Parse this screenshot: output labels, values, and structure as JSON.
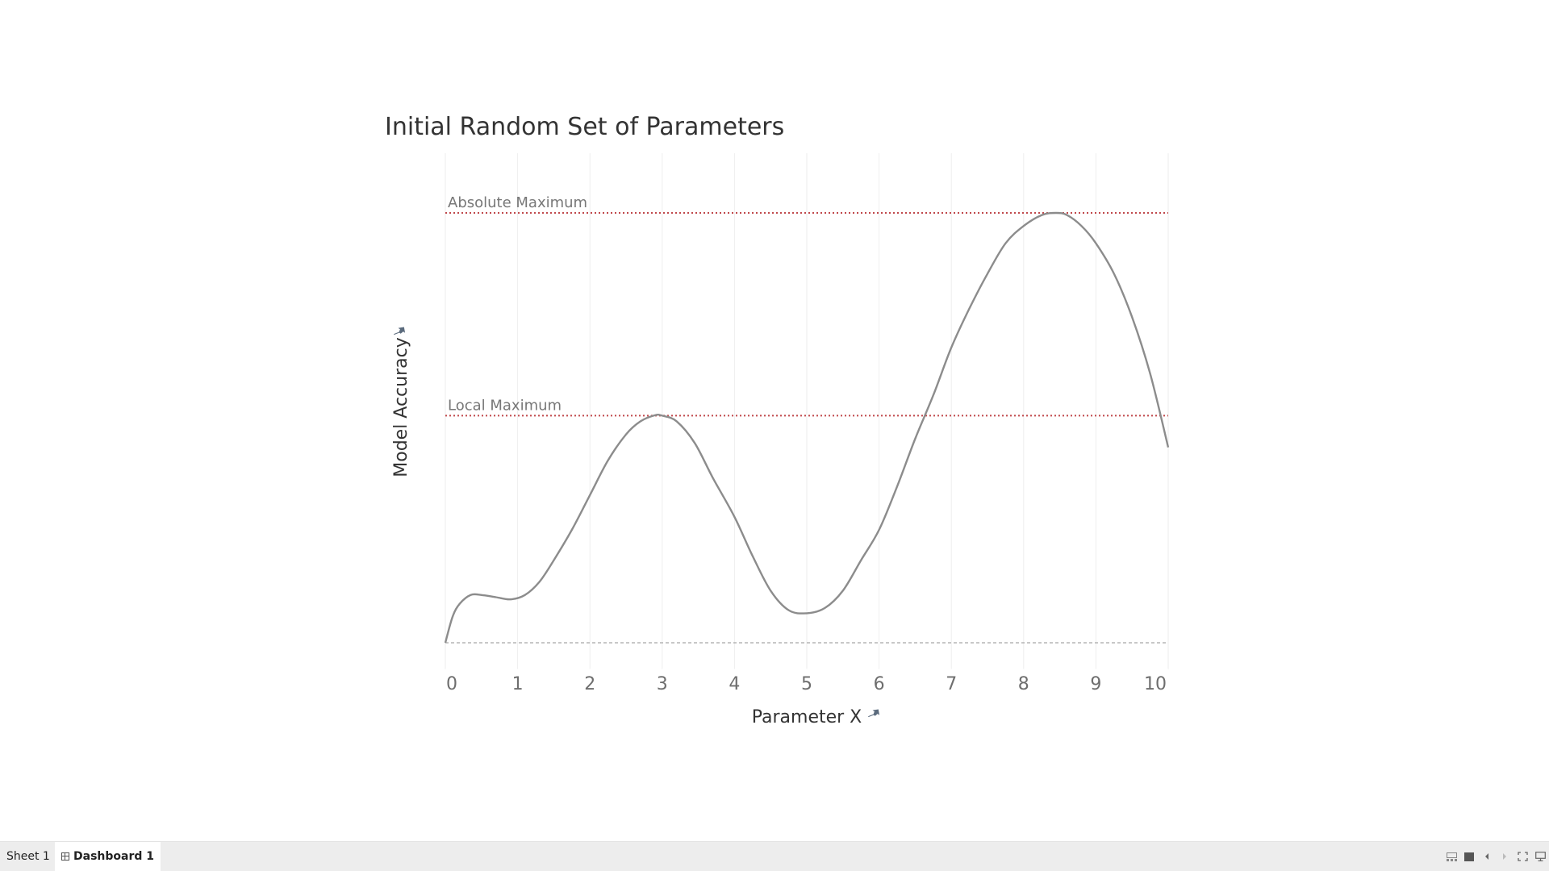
{
  "chart_data": {
    "type": "line",
    "title": "Initial Random Set of Parameters",
    "xlabel": "Parameter X",
    "ylabel": "Model Accuracy",
    "xlim": [
      0,
      10
    ],
    "ylim": [
      0,
      1
    ],
    "x_ticks": [
      "0",
      "1",
      "2",
      "3",
      "4",
      "5",
      "6",
      "7",
      "8",
      "9",
      "10"
    ],
    "grid": "vertical",
    "series": [
      {
        "color": "#8c8c8c",
        "points": [
          [
            0.0,
            0.0
          ],
          [
            0.1,
            0.06
          ],
          [
            0.2,
            0.09
          ],
          [
            0.35,
            0.11
          ],
          [
            0.5,
            0.11
          ],
          [
            0.7,
            0.105
          ],
          [
            0.9,
            0.1
          ],
          [
            1.1,
            0.11
          ],
          [
            1.3,
            0.14
          ],
          [
            1.5,
            0.19
          ],
          [
            1.75,
            0.26
          ],
          [
            2.0,
            0.34
          ],
          [
            2.25,
            0.42
          ],
          [
            2.5,
            0.48
          ],
          [
            2.7,
            0.51
          ],
          [
            2.9,
            0.524
          ],
          [
            3.0,
            0.523
          ],
          [
            3.2,
            0.51
          ],
          [
            3.45,
            0.46
          ],
          [
            3.7,
            0.38
          ],
          [
            4.0,
            0.29
          ],
          [
            4.25,
            0.2
          ],
          [
            4.5,
            0.12
          ],
          [
            4.75,
            0.075
          ],
          [
            5.0,
            0.068
          ],
          [
            5.25,
            0.08
          ],
          [
            5.5,
            0.12
          ],
          [
            5.75,
            0.19
          ],
          [
            6.0,
            0.26
          ],
          [
            6.25,
            0.36
          ],
          [
            6.5,
            0.47
          ],
          [
            6.75,
            0.57
          ],
          [
            7.0,
            0.68
          ],
          [
            7.25,
            0.77
          ],
          [
            7.5,
            0.85
          ],
          [
            7.75,
            0.92
          ],
          [
            8.0,
            0.96
          ],
          [
            8.25,
            0.985
          ],
          [
            8.45,
            0.99
          ],
          [
            8.6,
            0.985
          ],
          [
            8.8,
            0.96
          ],
          [
            9.0,
            0.92
          ],
          [
            9.25,
            0.85
          ],
          [
            9.5,
            0.75
          ],
          [
            9.75,
            0.62
          ],
          [
            10.0,
            0.45
          ]
        ]
      }
    ],
    "reference_lines": [
      {
        "label": "Absolute Maximum",
        "y": 0.99,
        "style": "dotted",
        "color": "#c0484b"
      },
      {
        "label": "Local Maximum",
        "y": 0.523,
        "style": "dotted",
        "color": "#c0484b"
      },
      {
        "label": "",
        "y": 0.0,
        "style": "dashed",
        "color": "#a8a8a8"
      }
    ]
  },
  "tabs": [
    {
      "label": "Sheet 1",
      "active": false
    },
    {
      "label": "Dashboard 1",
      "active": true
    }
  ],
  "colors": {
    "line": "#8c8c8c",
    "reference": "#c0484b",
    "grid": "#eeeeee",
    "tick": "#6e6e6e",
    "axis_label": "#333333"
  }
}
